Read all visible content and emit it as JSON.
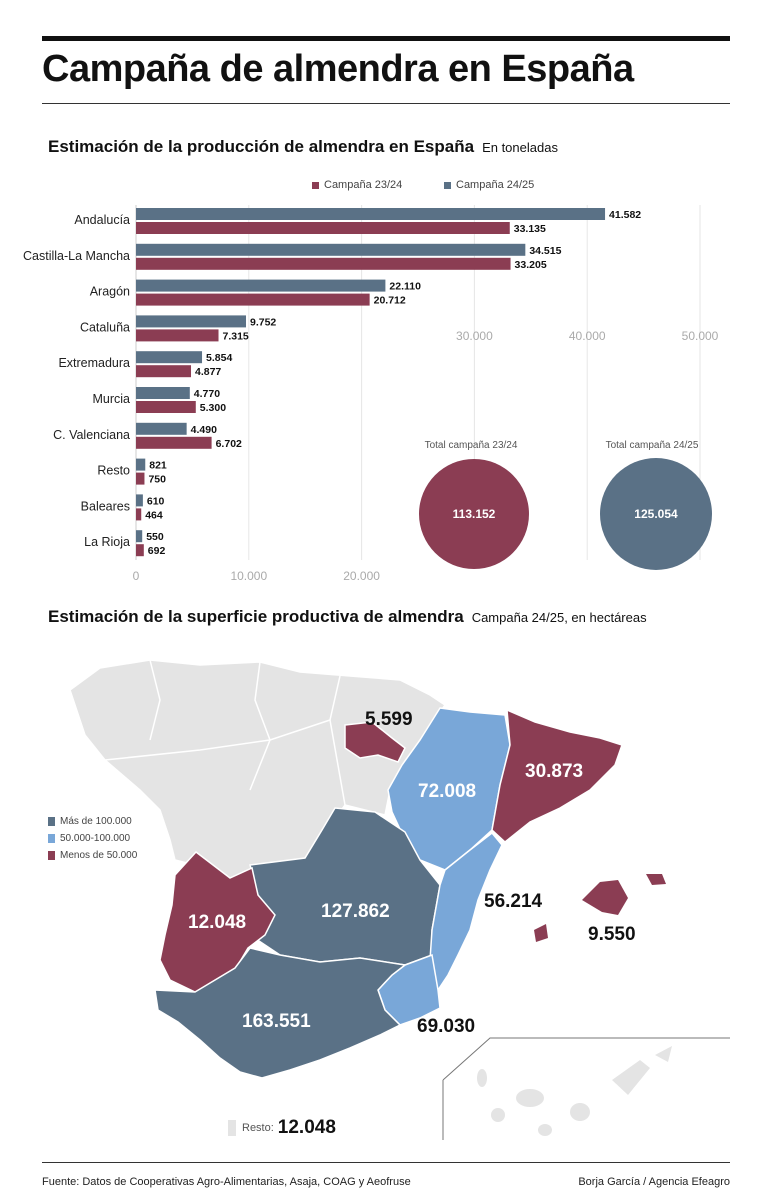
{
  "header": {
    "title": "Campaña de almendra en España"
  },
  "section1": {
    "title": "Estimación de la producción de almendra en España",
    "subtitle": "En toneladas"
  },
  "colors": {
    "c2324": "#8b3d53",
    "c2425": "#5a7186",
    "light_blue": "#79a7d8",
    "grey": "#e4e4e4"
  },
  "chart_data": {
    "type": "bar",
    "orientation": "horizontal",
    "categories": [
      "Andalucía",
      "Castilla-La Mancha",
      "Aragón",
      "Cataluña",
      "Extremadura",
      "Murcia",
      "C. Valenciana",
      "Resto",
      "Baleares",
      "La Rioja"
    ],
    "series": [
      {
        "name": "Campaña 24/25",
        "values": [
          41582,
          34515,
          22110,
          9752,
          5854,
          4770,
          4490,
          821,
          610,
          550
        ],
        "labels": [
          "41.582",
          "34.515",
          "22.110",
          "9.752",
          "5.854",
          "4.770",
          "4.490",
          "821",
          "610",
          "550"
        ]
      },
      {
        "name": "Campaña 23/24",
        "values": [
          33135,
          33205,
          20712,
          7315,
          4877,
          5300,
          6702,
          750,
          464,
          692
        ],
        "labels": [
          "33.135",
          "33.205",
          "20.712",
          "7.315",
          "4.877",
          "5.300",
          "6.702",
          "750",
          "464",
          "692"
        ]
      }
    ],
    "xlim": [
      0,
      50000
    ],
    "ticks": [
      {
        "value": 0,
        "label": "0"
      },
      {
        "value": 10000,
        "label": "10.000"
      },
      {
        "value": 20000,
        "label": "20.000"
      },
      {
        "value": 30000,
        "label": "30.000"
      },
      {
        "value": 40000,
        "label": "40.000"
      },
      {
        "value": 50000,
        "label": "50.000"
      }
    ],
    "legend": [
      "Campaña 23/24",
      "Campaña 24/25"
    ],
    "totals": [
      {
        "label": "Total campaña 23/24",
        "value": "113.152"
      },
      {
        "label": "Total campaña 24/25",
        "value": "125.054"
      }
    ]
  },
  "section2": {
    "title": "Estimación de la superficie productiva de almendra",
    "subtitle": "Campaña 24/25, en hectáreas",
    "legend": [
      "Más de 100.000",
      "50.000-100.000",
      "Menos de 50.000"
    ],
    "regions": {
      "rioja": "5.599",
      "aragon": "72.008",
      "cataluna": "30.873",
      "valencia": "56.214",
      "baleares": "9.550",
      "extremadura": "12.048",
      "castilla": "127.862",
      "andalucia": "163.551",
      "murcia": "69.030"
    },
    "resto_label": "Resto:",
    "resto_value": "12.048"
  },
  "footer": {
    "source": "Fuente: Datos de Cooperativas Agro-Alimentarias, Asaja, COAG y Aeofruse",
    "credit": "Borja García / Agencia Efeagro"
  }
}
